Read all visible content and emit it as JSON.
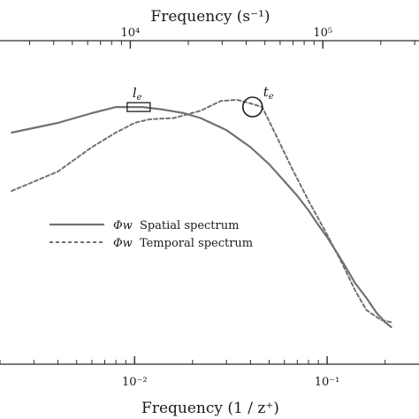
{
  "chart_data": {
    "type": "line",
    "title": "",
    "xlabel": "Frequency (1 / z⁺)",
    "x_top_label": "Frequency (s⁻¹)",
    "ylabel": "",
    "xscale": "log",
    "xlim": [
      0.002,
      0.3
    ],
    "bottom_ticks": [
      {
        "value": 0.01,
        "label": "10⁻²"
      },
      {
        "value": 0.1,
        "label": "10⁻¹"
      }
    ],
    "top_ticks": [
      {
        "value": 0.0095,
        "label": "10⁴"
      },
      {
        "value": 0.095,
        "label": "10⁵"
      }
    ],
    "y_units": "arbitrary (shape only)",
    "series": [
      {
        "name": "Φw Spatial spectrum",
        "legend_symbol": "Φw",
        "legend_text": "Spatial spectrum",
        "style": "solid",
        "color": "#6e7275",
        "points": [
          [
            0.0023,
            0.8
          ],
          [
            0.004,
            0.84
          ],
          [
            0.006,
            0.88
          ],
          [
            0.008,
            0.905
          ],
          [
            0.011,
            0.905
          ],
          [
            0.014,
            0.895
          ],
          [
            0.018,
            0.88
          ],
          [
            0.022,
            0.86
          ],
          [
            0.03,
            0.81
          ],
          [
            0.04,
            0.74
          ],
          [
            0.05,
            0.67
          ],
          [
            0.06,
            0.6
          ],
          [
            0.07,
            0.54
          ],
          [
            0.08,
            0.48
          ],
          [
            0.09,
            0.42
          ],
          [
            0.1,
            0.37
          ],
          [
            0.12,
            0.27
          ],
          [
            0.14,
            0.18
          ],
          [
            0.16,
            0.12
          ],
          [
            0.18,
            0.06
          ],
          [
            0.2,
            0.02
          ],
          [
            0.215,
            0.0
          ]
        ]
      },
      {
        "name": "Φw Temporal spectrum",
        "legend_symbol": "Φw",
        "legend_text": "Temporal spectrum",
        "style": "dashed",
        "color": "#6e7275",
        "points": [
          [
            0.0023,
            0.56
          ],
          [
            0.004,
            0.64
          ],
          [
            0.006,
            0.74
          ],
          [
            0.008,
            0.8
          ],
          [
            0.01,
            0.84
          ],
          [
            0.012,
            0.855
          ],
          [
            0.016,
            0.86
          ],
          [
            0.022,
            0.89
          ],
          [
            0.028,
            0.93
          ],
          [
            0.034,
            0.935
          ],
          [
            0.04,
            0.92
          ],
          [
            0.046,
            0.905
          ],
          [
            0.055,
            0.78
          ],
          [
            0.065,
            0.66
          ],
          [
            0.08,
            0.52
          ],
          [
            0.1,
            0.38
          ],
          [
            0.12,
            0.26
          ],
          [
            0.14,
            0.15
          ],
          [
            0.16,
            0.07
          ],
          [
            0.19,
            0.03
          ],
          [
            0.215,
            0.02
          ]
        ]
      }
    ],
    "annotations": [
      {
        "text": "l",
        "subscript": "e",
        "marker": "rectangle",
        "x": 0.0105,
        "y": 0.905
      },
      {
        "text": "t",
        "subscript": "e",
        "marker": "circle",
        "x": 0.041,
        "y": 0.92
      }
    ],
    "legend": "center-left",
    "grid": false
  }
}
